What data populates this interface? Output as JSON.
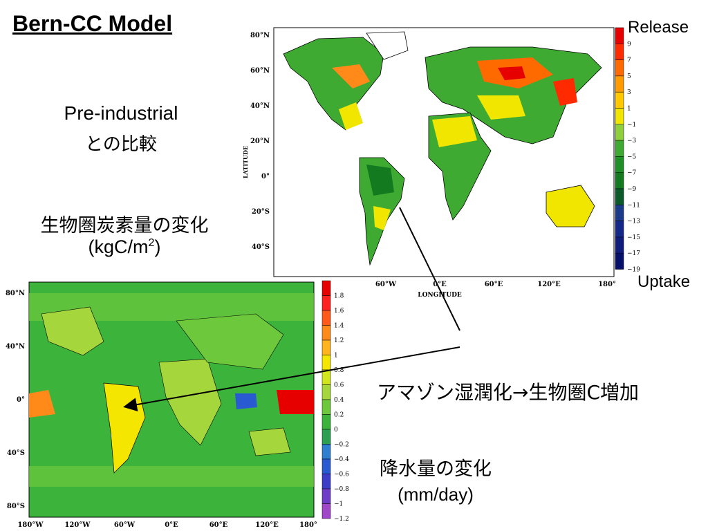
{
  "slide": {
    "title": "Bern-CC Model",
    "pre_industrial_line1": "Pre-industrial",
    "pre_industrial_line2": "との比較",
    "biosphere_label": "生物圏炭素量の変化",
    "biosphere_unit_prefix": "(kgC/m",
    "biosphere_unit_sup": "2",
    "biosphere_unit_suffix": ")",
    "amazon_note": "アマゾン湿潤化→生物圏C増加",
    "precip_label": "降水量の変化",
    "precip_unit": "(mm/day)"
  },
  "carbon_map": {
    "release_label": "Release",
    "uptake_label": "Uptake",
    "xlabel": "LONGITUDE",
    "ylabel": "LATITUDE",
    "lat_ticks": [
      "80°N",
      "60°N",
      "40°N",
      "20°N",
      "0°",
      "20°S",
      "40°S"
    ],
    "lon_ticks": [
      "60°W",
      "0°E",
      "60°E",
      "120°E",
      "180°"
    ],
    "colorbar_labels": [
      "9",
      "7",
      "5",
      "3",
      "1",
      "−1",
      "−3",
      "−5",
      "−7",
      "−9",
      "−11",
      "−13",
      "−15",
      "−17",
      "−19"
    ],
    "colorbar_colors": [
      "#e60000",
      "#ff2a00",
      "#ff6a00",
      "#ff9b00",
      "#ffc800",
      "#f0e600",
      "#8fce3c",
      "#3faa32",
      "#1f8f28",
      "#147a20",
      "#0b5a2a",
      "#1a3a8a",
      "#14288a",
      "#0e1c7c",
      "#06106a"
    ]
  },
  "precip_map": {
    "lat_ticks": [
      "80°N",
      "40°N",
      "0°",
      "40°S",
      "80°S"
    ],
    "lon_ticks": [
      "180°W",
      "120°W",
      "60°W",
      "0°E",
      "60°E",
      "120°E",
      "180°"
    ],
    "colorbar_labels": [
      "1.8",
      "1.6",
      "1.4",
      "1.2",
      "1",
      "0.8",
      "0.6",
      "0.4",
      "0.2",
      "0",
      "−0.2",
      "−0.4",
      "−0.6",
      "−0.8",
      "−1",
      "−1.2"
    ],
    "colorbar_colors": [
      "#e60000",
      "#ff2020",
      "#ff5a1a",
      "#ff8a1a",
      "#ffb41e",
      "#f5e600",
      "#d2e61e",
      "#a5d73c",
      "#6ec83c",
      "#3cb43c",
      "#2ca050",
      "#2f7fd0",
      "#2a5ad2",
      "#3c3cc8",
      "#6e3cc8",
      "#a046c8"
    ]
  }
}
